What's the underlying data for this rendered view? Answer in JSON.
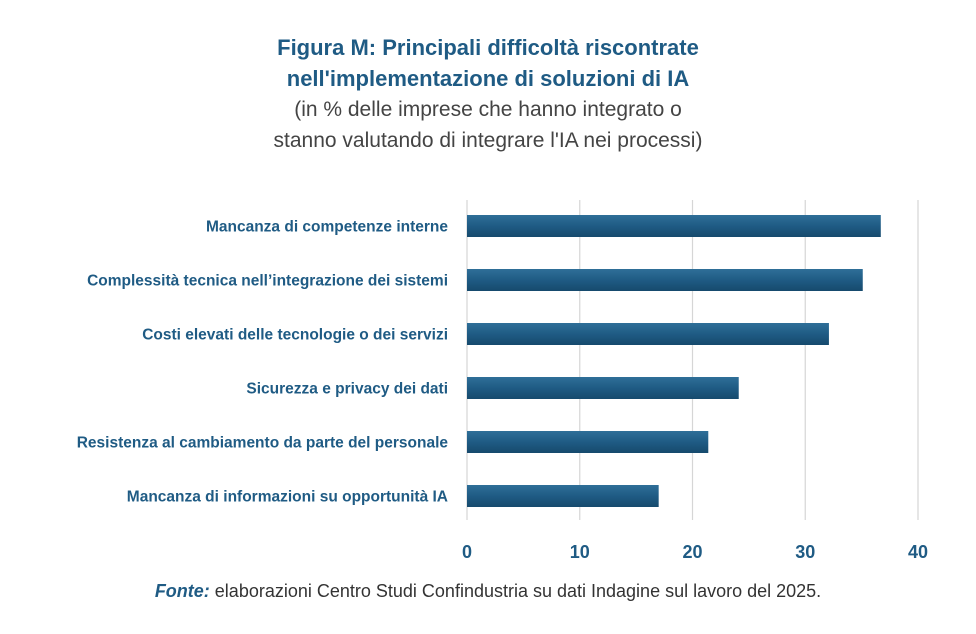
{
  "chart_data": {
    "type": "bar",
    "orientation": "horizontal",
    "title_lines": [
      "Figura M: Principali difficoltà riscontrate",
      "nell'implementazione di soluzioni di IA"
    ],
    "subtitle_lines": [
      "(in % delle imprese che hanno integrato o",
      "stanno valutando di integrare l'IA nei processi)"
    ],
    "categories": [
      "Mancanza di competenze interne",
      "Complessità tecnica nell’integrazione dei sistemi",
      "Costi elevati delle tecnologie o dei servizi",
      "Sicurezza e privacy dei dati",
      "Resistenza al cambiamento da parte del personale",
      "Mancanza di informazioni su opportunità IA"
    ],
    "values": [
      36.7,
      35.1,
      32.1,
      24.1,
      21.4,
      17.0
    ],
    "xlim": [
      0,
      40
    ],
    "xticks": [
      0,
      10,
      20,
      30,
      40
    ],
    "grid": "vertical",
    "bar_color": "#1f5b84"
  },
  "footnote": {
    "label": "Fonte:",
    "text": " elaborazioni Centro Studi Confindustria su dati Indagine sul lavoro del 2025."
  }
}
